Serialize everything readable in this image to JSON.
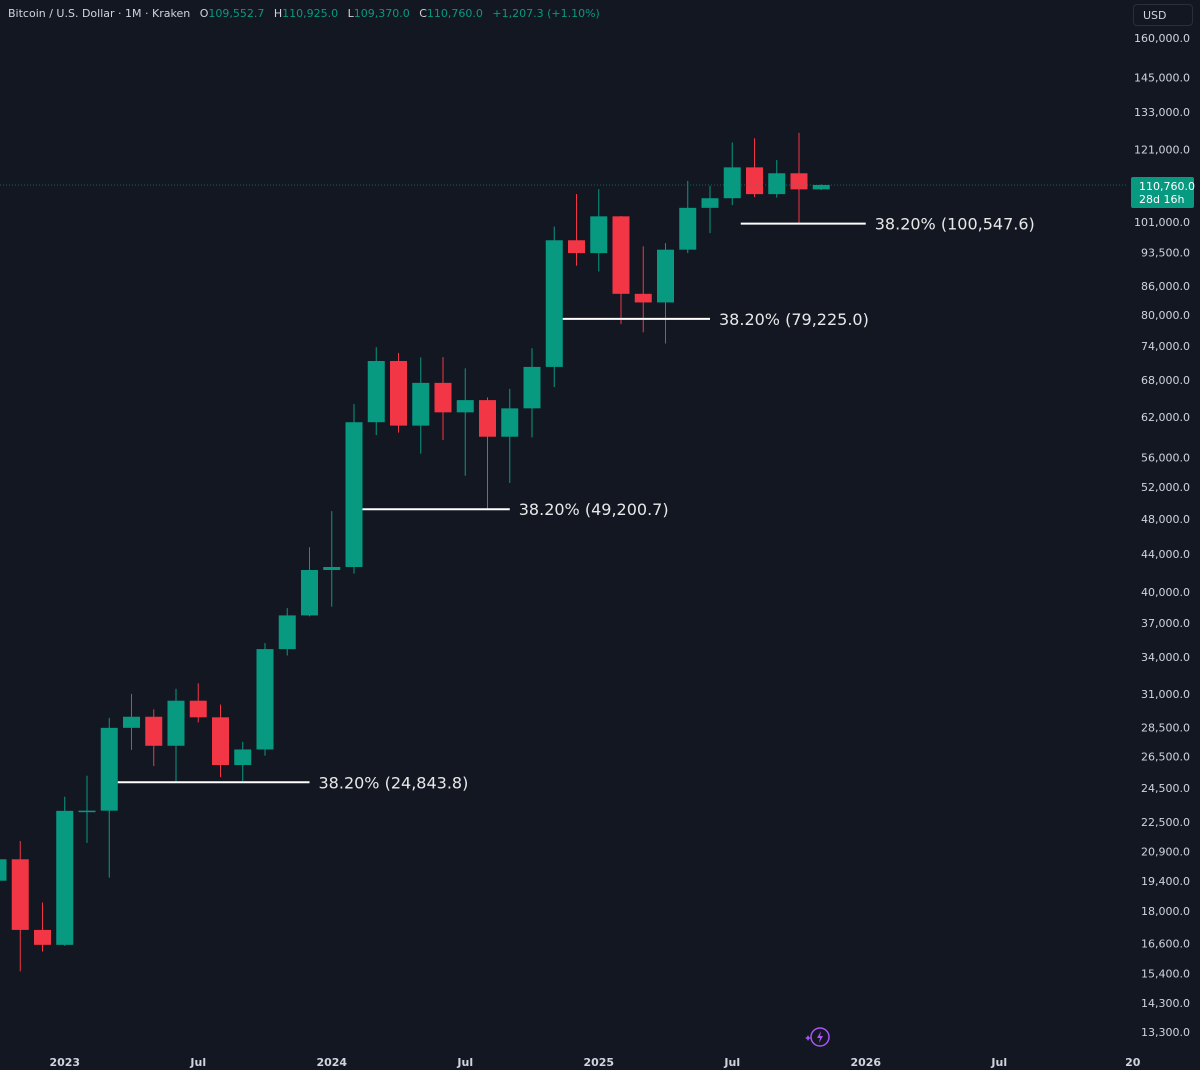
{
  "header": {
    "symbol": "Bitcoin / U.S. Dollar · 1M · Kraken",
    "o_label": "O",
    "o_value": "109,552.7",
    "h_label": "H",
    "h_value": "110,925.0",
    "l_label": "L",
    "l_value": "109,370.0",
    "c_label": "C",
    "c_value": "110,760.0",
    "change": "+1,207.3 (+1.10%)"
  },
  "currency_button": "USD",
  "price_tag": {
    "price": "110,760.0",
    "countdown": "28d 16h"
  },
  "colors": {
    "background": "#131722",
    "up": "#089981",
    "down": "#f23645",
    "fib_line": "#ffffff",
    "price_tag": "#089981",
    "icon": "#a855f7"
  },
  "bottom_icon": "lightning-sparkle-icon",
  "chart_data": {
    "type": "candlestick",
    "title": "Bitcoin / U.S. Dollar · 1M · Kraken",
    "y_scale": "log",
    "ylim": [
      12800,
      170000
    ],
    "y_ticks": [
      "160,000.0",
      "145,000.0",
      "133,000.0",
      "121,000.0",
      "101,000.0",
      "93,500.0",
      "86,000.0",
      "80,000.0",
      "74,000.0",
      "68,000.0",
      "62,000.0",
      "56,000.0",
      "52,000.0",
      "48,000.0",
      "44,000.0",
      "40,000.0",
      "37,000.0",
      "34,000.0",
      "31,000.0",
      "28,500.0",
      "26,500.0",
      "24,500.0",
      "22,500.0",
      "20,900.0",
      "19,400.0",
      "18,000.0",
      "16,600.0",
      "15,400.0",
      "14,300.0",
      "13,300.0"
    ],
    "x_ticks": [
      {
        "date": "2023-01",
        "label": "2023"
      },
      {
        "date": "2023-07",
        "label": "Jul"
      },
      {
        "date": "2024-01",
        "label": "2024"
      },
      {
        "date": "2024-07",
        "label": "Jul"
      },
      {
        "date": "2025-01",
        "label": "2025"
      },
      {
        "date": "2025-07",
        "label": "Jul"
      },
      {
        "date": "2026-01",
        "label": "2026"
      },
      {
        "date": "2026-07",
        "label": "Jul"
      },
      {
        "date": "2027-01",
        "label": "20"
      }
    ],
    "grid": false,
    "candles": [
      {
        "date": "2022-10",
        "o": 19420,
        "h": 20980,
        "l": 18190,
        "c": 20490
      },
      {
        "date": "2022-11",
        "o": 20490,
        "h": 21450,
        "l": 15480,
        "c": 17170
      },
      {
        "date": "2022-12",
        "o": 17170,
        "h": 18390,
        "l": 16260,
        "c": 16540
      },
      {
        "date": "2023-01",
        "o": 16540,
        "h": 23960,
        "l": 16500,
        "c": 23130
      },
      {
        "date": "2023-02",
        "o": 23130,
        "h": 25250,
        "l": 21350,
        "c": 23140
      },
      {
        "date": "2023-03",
        "o": 23140,
        "h": 29190,
        "l": 19570,
        "c": 28470
      },
      {
        "date": "2023-04",
        "o": 28470,
        "h": 31000,
        "l": 26940,
        "c": 29270
      },
      {
        "date": "2023-05",
        "o": 29270,
        "h": 29820,
        "l": 25870,
        "c": 27220
      },
      {
        "date": "2023-06",
        "o": 27220,
        "h": 31400,
        "l": 24800,
        "c": 30470
      },
      {
        "date": "2023-07",
        "o": 30470,
        "h": 31830,
        "l": 28860,
        "c": 29230
      },
      {
        "date": "2023-08",
        "o": 29230,
        "h": 30180,
        "l": 25170,
        "c": 25940
      },
      {
        "date": "2023-09",
        "o": 25940,
        "h": 27490,
        "l": 24920,
        "c": 26970
      },
      {
        "date": "2023-10",
        "o": 26970,
        "h": 35200,
        "l": 26560,
        "c": 34670
      },
      {
        "date": "2023-11",
        "o": 34670,
        "h": 38420,
        "l": 34120,
        "c": 37720
      },
      {
        "date": "2023-12",
        "o": 37720,
        "h": 44730,
        "l": 37630,
        "c": 42260
      },
      {
        "date": "2024-01",
        "o": 42260,
        "h": 48970,
        "l": 38550,
        "c": 42580
      },
      {
        "date": "2024-02",
        "o": 42580,
        "h": 64000,
        "l": 41880,
        "c": 61170
      },
      {
        "date": "2024-03",
        "o": 61170,
        "h": 73800,
        "l": 59240,
        "c": 71300
      },
      {
        "date": "2024-04",
        "o": 71300,
        "h": 72760,
        "l": 59600,
        "c": 60650
      },
      {
        "date": "2024-05",
        "o": 60650,
        "h": 71950,
        "l": 56550,
        "c": 67500
      },
      {
        "date": "2024-06",
        "o": 67500,
        "h": 72000,
        "l": 58500,
        "c": 62700
      },
      {
        "date": "2024-07",
        "o": 62700,
        "h": 70000,
        "l": 53500,
        "c": 64650
      },
      {
        "date": "2024-08",
        "o": 64650,
        "h": 65100,
        "l": 49200,
        "c": 58990
      },
      {
        "date": "2024-09",
        "o": 58990,
        "h": 66500,
        "l": 52550,
        "c": 63330
      },
      {
        "date": "2024-10",
        "o": 63330,
        "h": 73600,
        "l": 58900,
        "c": 70250
      },
      {
        "date": "2024-11",
        "o": 70250,
        "h": 99800,
        "l": 66800,
        "c": 96450
      },
      {
        "date": "2024-12",
        "o": 96450,
        "h": 108300,
        "l": 90500,
        "c": 93400
      },
      {
        "date": "2025-01",
        "o": 93400,
        "h": 109600,
        "l": 89200,
        "c": 102400
      },
      {
        "date": "2025-02",
        "o": 102400,
        "h": 102500,
        "l": 78200,
        "c": 84350
      },
      {
        "date": "2025-03",
        "o": 84350,
        "h": 95000,
        "l": 76600,
        "c": 82550
      },
      {
        "date": "2025-04",
        "o": 82550,
        "h": 95750,
        "l": 74500,
        "c": 94200
      },
      {
        "date": "2025-05",
        "o": 94200,
        "h": 111900,
        "l": 93400,
        "c": 104600
      },
      {
        "date": "2025-06",
        "o": 104600,
        "h": 110500,
        "l": 98200,
        "c": 107150
      },
      {
        "date": "2025-07",
        "o": 107150,
        "h": 123200,
        "l": 105300,
        "c": 115750
      },
      {
        "date": "2025-08",
        "o": 115750,
        "h": 124500,
        "l": 107400,
        "c": 108250
      },
      {
        "date": "2025-09",
        "o": 108250,
        "h": 117900,
        "l": 107300,
        "c": 114050
      },
      {
        "date": "2025-10",
        "o": 114050,
        "h": 126200,
        "l": 100547.6,
        "c": 109552.7
      },
      {
        "date": "2025-11",
        "o": 109552.7,
        "h": 110925,
        "l": 109370,
        "c": 110760
      }
    ],
    "fib_levels": [
      {
        "label": "38.20% (24,843.8)",
        "value": 24843.8,
        "from": "2023-03",
        "to": "2023-12"
      },
      {
        "label": "38.20% (49,200.7)",
        "value": 49200.7,
        "from": "2024-02",
        "to": "2024-09"
      },
      {
        "label": "38.20% (79,225.0)",
        "value": 79225.0,
        "from": "2024-11",
        "to": "2025-06"
      },
      {
        "label": "38.20% (100,547.6)",
        "value": 100547.6,
        "from": "2025-07",
        "to": "2026-01"
      }
    ],
    "last_price": 110760
  }
}
